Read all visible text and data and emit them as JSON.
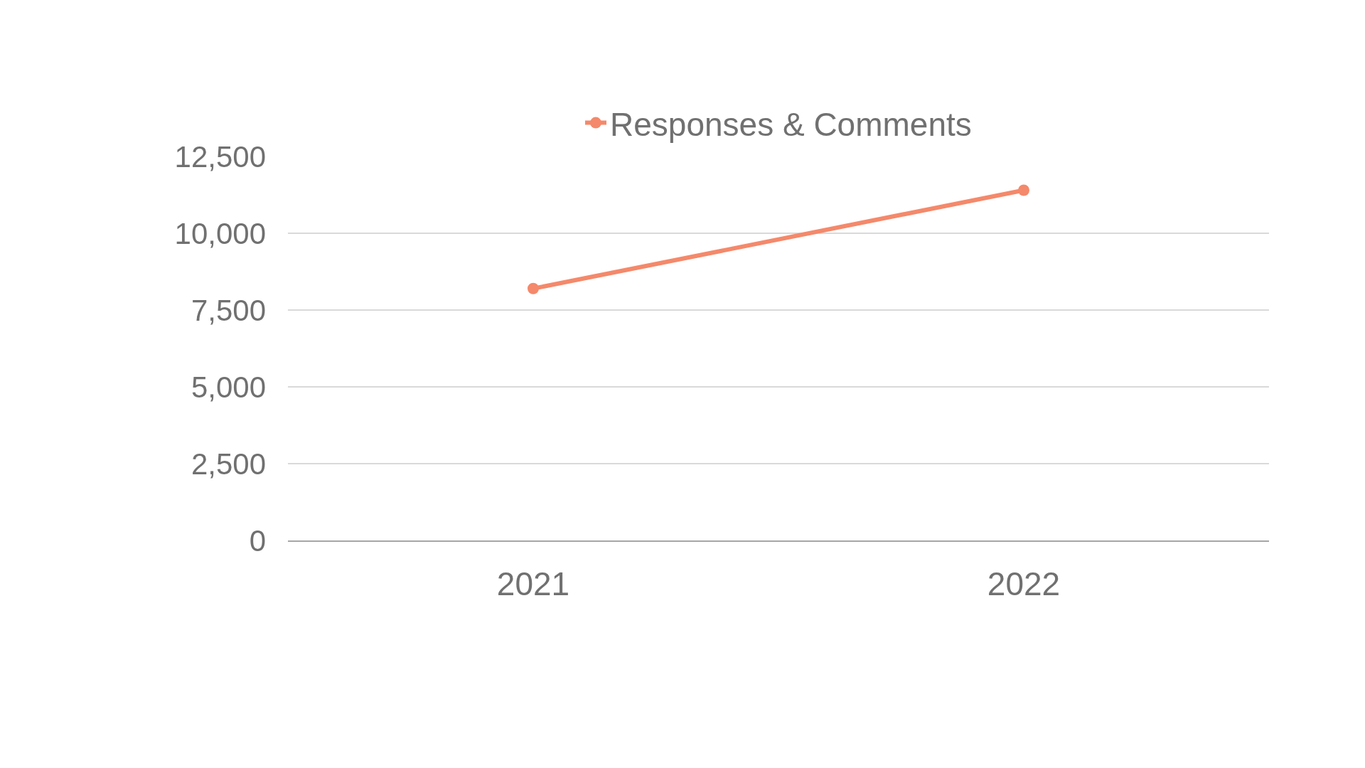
{
  "chart_data": {
    "type": "line",
    "categories": [
      "2021",
      "2022"
    ],
    "series": [
      {
        "name": "Responses & Comments",
        "color": "#f4896b",
        "values": [
          8200,
          11400
        ]
      }
    ],
    "ylim": [
      0,
      12500
    ],
    "yticks": [
      0,
      {
        "value": 2500,
        "label": "2,500"
      },
      {
        "value": 5000,
        "label": "5,000"
      },
      {
        "value": 7500,
        "label": "7,500"
      },
      {
        "value": 10000,
        "label": "10,000"
      },
      {
        "value": 12500,
        "label": "12,500"
      }
    ],
    "grid": "y",
    "legend": "top",
    "marker": "circle",
    "line_style": "solid"
  }
}
